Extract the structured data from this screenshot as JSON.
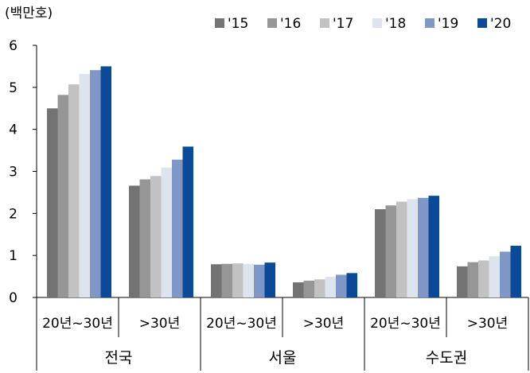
{
  "chart_data": {
    "type": "bar",
    "unit_label": "(백만호)",
    "ylim": [
      0,
      6
    ],
    "yticks": [
      "0",
      "1",
      "2",
      "3",
      "4",
      "5",
      "6"
    ],
    "legend_position": "top-right",
    "series": [
      {
        "name": "'15",
        "color": "#737373",
        "values": [
          4.5,
          2.66,
          0.79,
          0.36,
          2.1,
          0.74
        ]
      },
      {
        "name": "'16",
        "color": "#969696",
        "values": [
          4.82,
          2.81,
          0.8,
          0.4,
          2.19,
          0.84
        ]
      },
      {
        "name": "'17",
        "color": "#c2c2c2",
        "values": [
          5.07,
          2.89,
          0.81,
          0.43,
          2.28,
          0.88
        ]
      },
      {
        "name": "'18",
        "color": "#dde4ee",
        "values": [
          5.32,
          3.09,
          0.8,
          0.49,
          2.34,
          0.98
        ]
      },
      {
        "name": "'19",
        "color": "#7f97c6",
        "values": [
          5.41,
          3.28,
          0.78,
          0.54,
          2.37,
          1.09
        ]
      },
      {
        "name": "'20",
        "color": "#0a4a98",
        "values": [
          5.5,
          3.59,
          0.83,
          0.58,
          2.42,
          1.23
        ]
      }
    ],
    "categories": [
      "20년~30년",
      ">30년",
      "20년~30년",
      ">30년",
      "20년~30년",
      ">30년"
    ],
    "groups": [
      {
        "label": "전국",
        "span": 2
      },
      {
        "label": "서울",
        "span": 2
      },
      {
        "label": "수도권",
        "span": 2
      }
    ]
  }
}
